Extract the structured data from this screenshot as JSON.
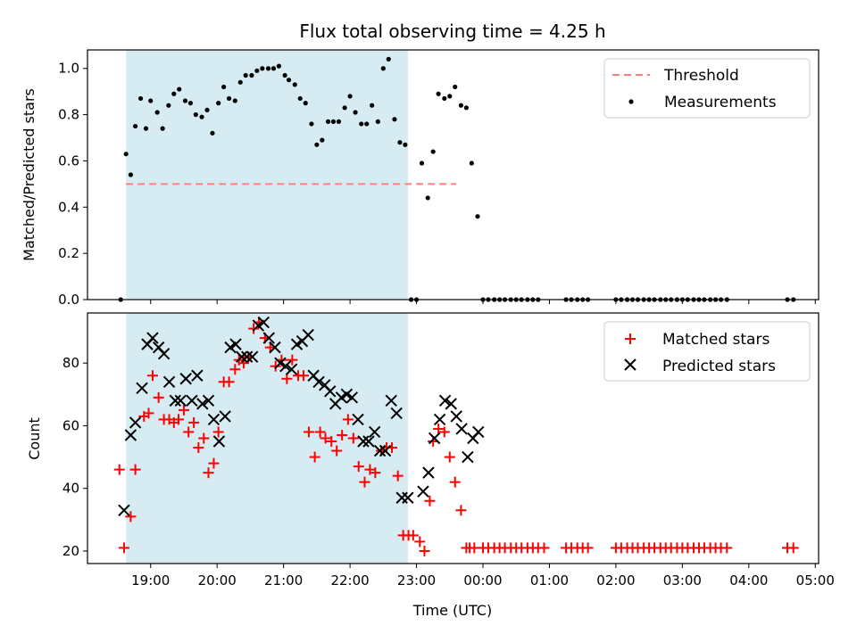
{
  "chart_data": [
    {
      "type": "scatter",
      "title": "Flux total observing time = 4.25 h",
      "xlabel": "",
      "ylabel": "Matched/Predicted stars",
      "ylim": [
        0,
        1.08
      ],
      "yticks": [
        "0.0",
        "0.2",
        "0.4",
        "0.6",
        "0.8",
        "1.0"
      ],
      "ytick_values": [
        0,
        0.2,
        0.4,
        0.6,
        0.8,
        1.0
      ],
      "shaded_span": [
        18.63,
        22.87
      ],
      "shaded_color": "#add8e6",
      "threshold": {
        "label": "Threshold",
        "value": 0.5,
        "x_range": [
          18.63,
          23.6
        ],
        "color": "#ff7f7f"
      },
      "legend": [
        "Threshold",
        "Measurements"
      ],
      "series": [
        {
          "name": "Measurements",
          "color": "#000000",
          "x": [
            18.55,
            18.63,
            18.7,
            18.77,
            18.85,
            18.93,
            19.0,
            19.1,
            19.18,
            19.27,
            19.35,
            19.43,
            19.52,
            19.6,
            19.68,
            19.77,
            19.85,
            19.93,
            20.02,
            20.1,
            20.18,
            20.27,
            20.35,
            20.43,
            20.52,
            20.6,
            20.68,
            20.77,
            20.85,
            20.93,
            21.02,
            21.08,
            21.17,
            21.25,
            21.33,
            21.42,
            21.5,
            21.58,
            21.67,
            21.75,
            21.83,
            21.92,
            22.0,
            22.08,
            22.17,
            22.25,
            22.33,
            22.42,
            22.5,
            22.58,
            22.67,
            22.75,
            22.83,
            22.92,
            23.0,
            23.08,
            23.17,
            23.25,
            23.33,
            23.42,
            23.5,
            23.58,
            23.67,
            23.75,
            23.83,
            23.92,
            24.0,
            24.08,
            24.17,
            24.25,
            24.33,
            24.42,
            24.5,
            24.58,
            24.67,
            24.75,
            24.83,
            25.25,
            25.33,
            25.42,
            25.5,
            25.58,
            26.0,
            26.08,
            26.17,
            26.25,
            26.33,
            26.42,
            26.5,
            26.58,
            26.67,
            26.75,
            26.83,
            26.92,
            27.0,
            27.08,
            27.17,
            27.25,
            27.33,
            27.42,
            27.5,
            27.58,
            27.67,
            28.58,
            28.67
          ],
          "y": [
            0.0,
            0.63,
            0.54,
            0.75,
            0.87,
            0.74,
            0.86,
            0.81,
            0.74,
            0.84,
            0.89,
            0.91,
            0.86,
            0.85,
            0.8,
            0.79,
            0.82,
            0.72,
            0.85,
            0.92,
            0.87,
            0.86,
            0.94,
            0.97,
            0.97,
            0.99,
            1.0,
            1.0,
            1.0,
            1.01,
            0.97,
            0.95,
            0.93,
            0.87,
            0.85,
            0.76,
            0.67,
            0.69,
            0.77,
            0.77,
            0.77,
            0.83,
            0.88,
            0.81,
            0.76,
            0.76,
            0.84,
            0.77,
            1.0,
            1.04,
            0.78,
            0.68,
            0.67,
            0.0,
            0.0,
            0.59,
            0.44,
            0.64,
            0.89,
            0.87,
            0.88,
            0.92,
            0.84,
            0.83,
            0.59,
            0.36,
            0.0,
            0.0,
            0.0,
            0.0,
            0.0,
            0.0,
            0.0,
            0.0,
            0.0,
            0.0,
            0.0,
            0.0,
            0.0,
            0.0,
            0.0,
            0.0,
            0.0,
            0.0,
            0.0,
            0.0,
            0.0,
            0.0,
            0.0,
            0.0,
            0.0,
            0.0,
            0.0,
            0.0,
            0.0,
            0.0,
            0.0,
            0.0,
            0.0,
            0.0,
            0.0,
            0.0,
            0.0,
            0.0,
            0.0
          ]
        }
      ]
    },
    {
      "type": "scatter",
      "title": "",
      "xlabel": "Time (UTC)",
      "ylabel": "Count",
      "xlim": [
        18.05,
        29.05
      ],
      "ylim": [
        16,
        96
      ],
      "yticks": [
        "20",
        "40",
        "60",
        "80"
      ],
      "ytick_values": [
        20,
        40,
        60,
        80
      ],
      "xticks": [
        "19:00",
        "20:00",
        "21:00",
        "22:00",
        "23:00",
        "00:00",
        "01:00",
        "02:00",
        "03:00",
        "04:00",
        "05:00"
      ],
      "xtick_values": [
        19,
        20,
        21,
        22,
        23,
        24,
        25,
        26,
        27,
        28,
        29
      ],
      "shaded_span": [
        18.63,
        22.87
      ],
      "shaded_color": "#add8e6",
      "legend": [
        "Matched stars",
        "Predicted stars"
      ],
      "series": [
        {
          "name": "Matched stars",
          "color": "#ff0000",
          "marker": "plus",
          "x": [
            18.53,
            18.6,
            18.7,
            18.77,
            18.9,
            18.97,
            19.03,
            19.12,
            19.2,
            19.28,
            19.35,
            19.42,
            19.5,
            19.57,
            19.65,
            19.72,
            19.8,
            19.87,
            19.95,
            20.02,
            20.1,
            20.18,
            20.27,
            20.33,
            20.4,
            20.47,
            20.55,
            20.63,
            20.72,
            20.8,
            20.88,
            20.97,
            21.05,
            21.13,
            21.22,
            21.3,
            21.38,
            21.47,
            21.55,
            21.63,
            21.72,
            21.8,
            21.88,
            21.97,
            22.05,
            22.13,
            22.22,
            22.3,
            22.38,
            22.47,
            22.55,
            22.63,
            22.72,
            22.8,
            22.88,
            22.95,
            23.05,
            23.12,
            23.2,
            23.25,
            23.33,
            23.42,
            23.5,
            23.58,
            23.67,
            23.75,
            23.8,
            23.87,
            24.0,
            24.08,
            24.17,
            24.25,
            24.33,
            24.42,
            24.5,
            24.58,
            24.67,
            24.75,
            24.83,
            24.92,
            25.25,
            25.33,
            25.42,
            25.5,
            25.58,
            26.0,
            26.08,
            26.17,
            26.25,
            26.33,
            26.42,
            26.5,
            26.58,
            26.67,
            26.75,
            26.83,
            26.92,
            27.0,
            27.08,
            27.17,
            27.25,
            27.33,
            27.42,
            27.5,
            27.58,
            27.67,
            28.58,
            28.67
          ],
          "y": [
            46,
            21,
            31,
            46,
            63,
            64,
            76,
            69,
            62,
            62,
            61,
            62,
            65,
            58,
            61,
            53,
            56,
            45,
            48,
            58,
            74,
            74,
            78,
            81,
            80,
            82,
            91,
            93,
            88,
            85,
            79,
            81,
            75,
            81,
            76,
            76,
            58,
            50,
            58,
            56,
            55,
            52,
            57,
            62,
            56,
            47,
            42,
            46,
            45,
            52,
            53,
            53,
            44,
            25,
            25,
            25,
            23,
            20,
            36,
            55,
            59,
            58,
            50,
            42,
            33,
            21,
            21,
            21,
            21,
            21,
            21,
            21,
            21,
            21,
            21,
            21,
            21,
            21,
            21,
            21,
            21,
            21,
            21,
            21,
            21,
            21,
            21,
            21,
            21,
            21,
            21,
            21,
            21,
            21,
            21,
            21,
            21,
            21,
            21,
            21,
            21,
            21,
            21,
            21,
            21,
            21,
            21,
            21
          ]
        },
        {
          "name": "Predicted stars",
          "color": "#000000",
          "marker": "x",
          "x": [
            18.6,
            18.7,
            18.77,
            18.87,
            18.95,
            19.03,
            19.12,
            19.2,
            19.28,
            19.37,
            19.45,
            19.53,
            19.62,
            19.7,
            19.78,
            19.87,
            19.95,
            20.03,
            20.12,
            20.2,
            20.28,
            20.37,
            20.45,
            20.53,
            20.62,
            20.7,
            20.78,
            20.87,
            20.95,
            21.03,
            21.12,
            21.2,
            21.28,
            21.37,
            21.45,
            21.53,
            21.62,
            21.7,
            21.78,
            21.87,
            21.95,
            22.03,
            22.12,
            22.2,
            22.28,
            22.37,
            22.45,
            22.53,
            22.62,
            22.7,
            22.78,
            22.87,
            23.1,
            23.18,
            23.27,
            23.35,
            23.43,
            23.52,
            23.6,
            23.68,
            23.77,
            23.85,
            23.93
          ],
          "y": [
            33,
            57,
            61,
            72,
            86,
            88,
            85,
            83,
            74,
            68,
            68,
            75,
            68,
            76,
            67,
            68,
            62,
            55,
            63,
            85,
            86,
            82,
            82,
            82,
            92,
            93,
            88,
            85,
            80,
            79,
            78,
            86,
            87,
            89,
            76,
            74,
            73,
            71,
            67,
            69,
            70,
            69,
            62,
            55,
            55,
            58,
            52,
            52,
            68,
            64,
            37,
            37,
            39,
            45,
            56,
            62,
            68,
            67,
            63,
            59,
            50,
            56,
            58
          ]
        }
      ]
    }
  ]
}
